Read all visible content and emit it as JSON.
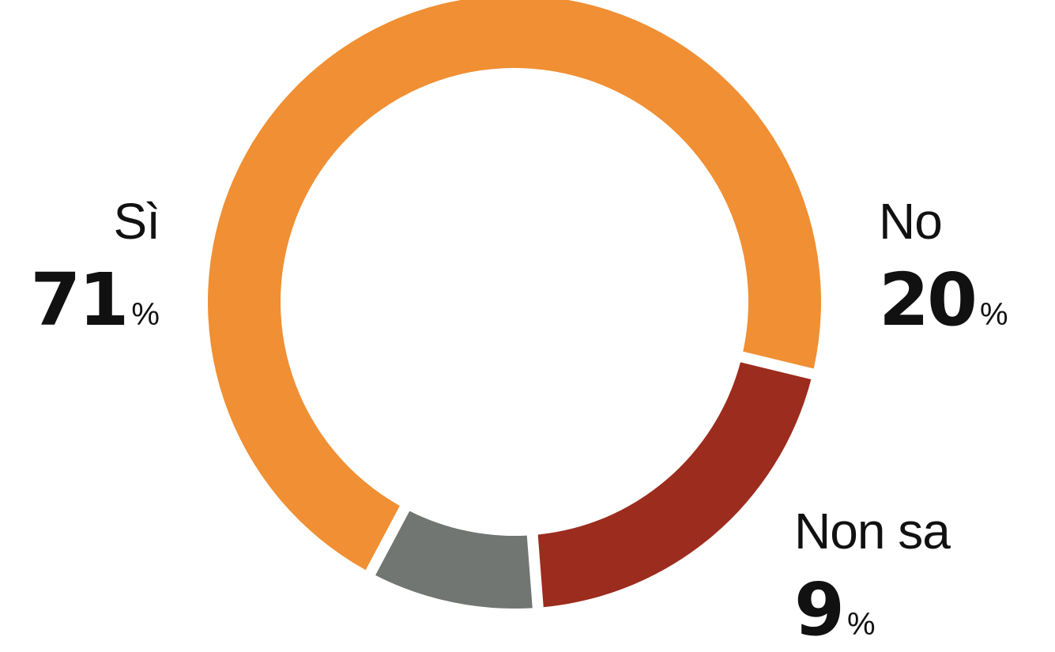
{
  "chart_data": {
    "type": "pie",
    "variant": "donut",
    "categories": [
      "Sì",
      "No",
      "Non sa"
    ],
    "values": [
      71,
      20,
      9
    ],
    "unit": "%",
    "colors": [
      "#F08F33",
      "#9C2C1E",
      "#717672"
    ],
    "start_angle_deg": 208,
    "title": "",
    "legend": "none"
  },
  "labels": [
    {
      "name": "Sì",
      "value": "71",
      "unit": "%"
    },
    {
      "name": "No",
      "value": "20",
      "unit": "%"
    },
    {
      "name": "Non sa",
      "value": "9",
      "unit": "%"
    }
  ]
}
